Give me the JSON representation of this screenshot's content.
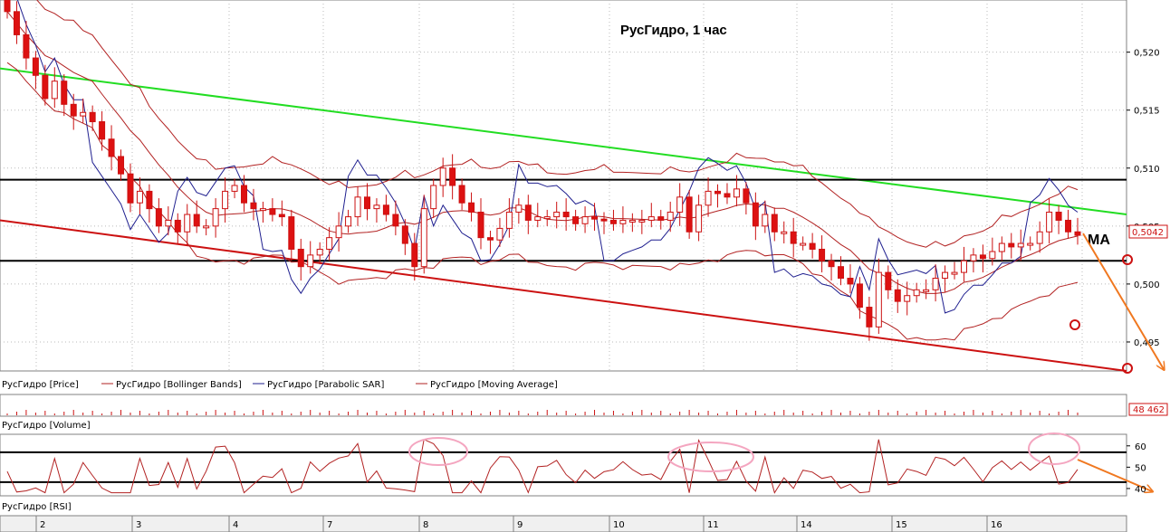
{
  "chart_data": [
    {
      "type": "candlestick",
      "title": "РусГидро,  1 час",
      "ylim": [
        0.4925,
        0.5245
      ],
      "y_ticks": [
        "0,520",
        "0,515",
        "0,510",
        "0,505",
        "0,500",
        "0,495"
      ],
      "current_price_label": "0,5042",
      "annotation": "MA",
      "grid": true,
      "legend_position": "bottom",
      "legend": [
        {
          "name": "РусГидро [Price]",
          "color": "#000000"
        },
        {
          "name": "РусГидро [Bollinger Bands]",
          "color": "#b22222"
        },
        {
          "name": "РусГидро [Parabolic SAR]",
          "color": "#1f1f8f"
        },
        {
          "name": "РусГидро [Moving Average]",
          "color": "#b22222"
        }
      ],
      "levels": {
        "resistance": 0.509,
        "support": 0.502
      },
      "trend_channel": {
        "upper": {
          "from": [
            0,
            0.5186
          ],
          "to": [
            1.0,
            0.506
          ],
          "color": "#22dd22"
        },
        "lower": {
          "from": [
            0,
            0.5055
          ],
          "to": [
            1.0,
            0.4925
          ],
          "color": "#cc1111"
        }
      },
      "candles_close": [
        0.5235,
        0.5215,
        0.5195,
        0.518,
        0.516,
        0.5175,
        0.5155,
        0.5145,
        0.5148,
        0.514,
        0.5125,
        0.511,
        0.5095,
        0.507,
        0.508,
        0.5065,
        0.505,
        0.5055,
        0.5045,
        0.506,
        0.505,
        0.505,
        0.5065,
        0.508,
        0.5085,
        0.507,
        0.5065,
        0.5065,
        0.506,
        0.5058,
        0.503,
        0.5015,
        0.5025,
        0.503,
        0.504,
        0.505,
        0.5058,
        0.5075,
        0.5065,
        0.5068,
        0.506,
        0.505,
        0.5035,
        0.5015,
        0.5065,
        0.5085,
        0.51,
        0.5085,
        0.507,
        0.5062,
        0.504,
        0.5038,
        0.5048,
        0.5062,
        0.5068,
        0.5055,
        0.5058,
        0.5058,
        0.5062,
        0.5058,
        0.5052,
        0.5058,
        0.5056,
        0.5055,
        0.5052,
        0.5055,
        0.5055,
        0.5055,
        0.5058,
        0.5055,
        0.5062,
        0.5075,
        0.5045,
        0.5068,
        0.508,
        0.5078,
        0.5075,
        0.5082,
        0.507,
        0.505,
        0.506,
        0.5045,
        0.5045,
        0.5035,
        0.5035,
        0.503,
        0.502,
        0.5015,
        0.5005,
        0.5,
        0.498,
        0.4963,
        0.501,
        0.4995,
        0.4985,
        0.499,
        0.4995,
        0.4995,
        0.5005,
        0.501,
        0.501,
        0.502,
        0.5025,
        0.5022,
        0.5028,
        0.5035,
        0.5032,
        0.5035,
        0.5035,
        0.5045,
        0.5062,
        0.5055,
        0.5045,
        0.5042
      ],
      "volume_label": "48 462",
      "rsi": {
        "ticks": [
          "60",
          "50",
          "40"
        ],
        "levels": [
          57,
          43
        ],
        "ylim": [
          37,
          65
        ]
      },
      "x_ticks": [
        "2",
        "3",
        "4",
        "7",
        "8",
        "9",
        "10",
        "11",
        "14",
        "15",
        "16"
      ],
      "panel_labels": {
        "volume": "РусГидро [Volume]",
        "rsi": "РусГидро [RSI]"
      }
    }
  ]
}
